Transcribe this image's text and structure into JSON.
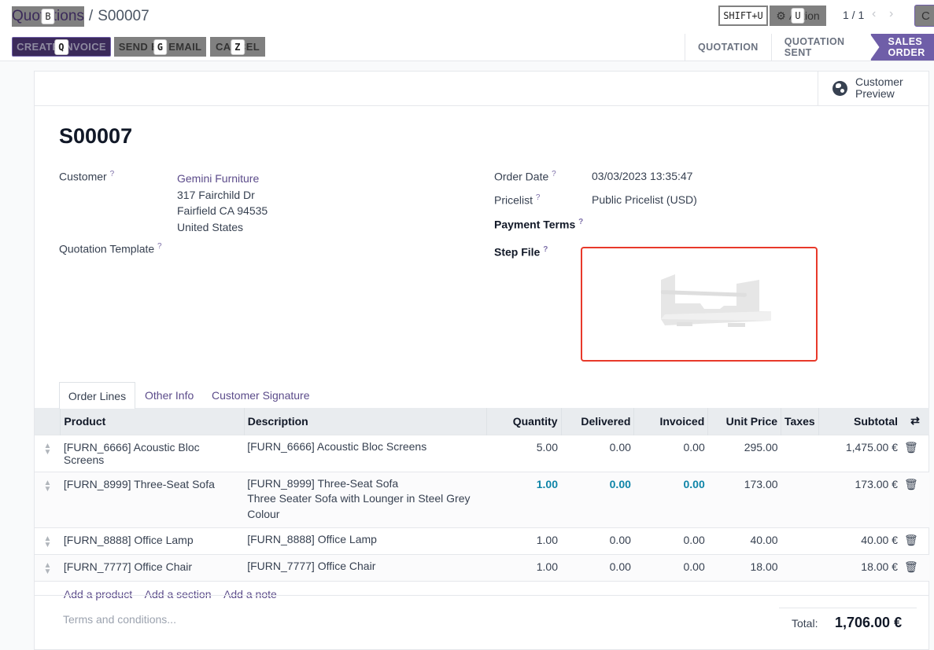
{
  "breadcrumb": {
    "parent": "Quotations",
    "parent_hint": "B",
    "current": "S00007"
  },
  "toolbar": {
    "shift_hint": "SHIFT+U",
    "action_label": "Action",
    "action_hint": "U",
    "pager": "1 / 1",
    "create_partial": "C"
  },
  "actions": [
    {
      "label": "CREATE INVOICE",
      "hint": "Q"
    },
    {
      "label": "SEND BY EMAIL",
      "hint": "G"
    },
    {
      "label": "CANCEL",
      "hint": "Z"
    }
  ],
  "status_steps": [
    "QUOTATION",
    "QUOTATION SENT",
    "SALES ORDER"
  ],
  "active_status": "SALES ORDER",
  "customer_preview": {
    "line1": "Customer",
    "line2": "Preview",
    "icon": "globe-icon"
  },
  "record": {
    "name": "S00007",
    "customer_label": "Customer",
    "customer_name": "Gemini Furniture",
    "address": [
      "317 Fairchild Dr",
      "Fairfield CA 94535",
      "United States"
    ],
    "template_label": "Quotation Template",
    "order_date_label": "Order Date",
    "order_date": "03/03/2023 13:35:47",
    "pricelist_label": "Pricelist",
    "pricelist": "Public Pricelist (USD)",
    "payment_terms_label": "Payment Terms",
    "step_file_label": "Step File",
    "help": "?"
  },
  "tabs": [
    "Order Lines",
    "Other Info",
    "Customer Signature"
  ],
  "table": {
    "columns": [
      "Product",
      "Description",
      "Quantity",
      "Delivered",
      "Invoiced",
      "Unit Price",
      "Taxes",
      "Subtotal"
    ],
    "rows": [
      {
        "product": "[FURN_6666] Acoustic Bloc Screens",
        "description": [
          "[FURN_6666] Acoustic Bloc Screens"
        ],
        "quantity": "5.00",
        "delivered": "0.00",
        "invoiced": "0.00",
        "unit_price": "295.00",
        "taxes": "",
        "subtotal": "1,475.00 €"
      },
      {
        "product": "[FURN_8999] Three-Seat Sofa",
        "description": [
          "[FURN_8999] Three-Seat Sofa",
          "Three Seater Sofa with Lounger in Steel Grey",
          "Colour"
        ],
        "quantity": "1.00",
        "delivered": "0.00",
        "invoiced": "0.00",
        "unit_price": "173.00",
        "taxes": "",
        "subtotal": "173.00 €"
      },
      {
        "product": "[FURN_8888] Office Lamp",
        "description": [
          "[FURN_8888] Office Lamp"
        ],
        "quantity": "1.00",
        "delivered": "0.00",
        "invoiced": "0.00",
        "unit_price": "40.00",
        "taxes": "",
        "subtotal": "40.00 €"
      },
      {
        "product": "[FURN_7777] Office Chair",
        "description": [
          "[FURN_7777] Office Chair"
        ],
        "quantity": "1.00",
        "delivered": "0.00",
        "invoiced": "0.00",
        "unit_price": "18.00",
        "taxes": "",
        "subtotal": "18.00 €"
      }
    ],
    "add_links": [
      "Add a product",
      "Add a section",
      "Add a note"
    ]
  },
  "footer": {
    "terms_placeholder": "Terms and conditions...",
    "total_label": "Total:",
    "total_value": "1,706.00 €"
  },
  "colors": {
    "primary": "#3b2a5a",
    "status_active": "#6f5ea8",
    "link": "#5b4b8a",
    "highlight": "#0f85a8",
    "step_file_border": "#e8392a"
  }
}
